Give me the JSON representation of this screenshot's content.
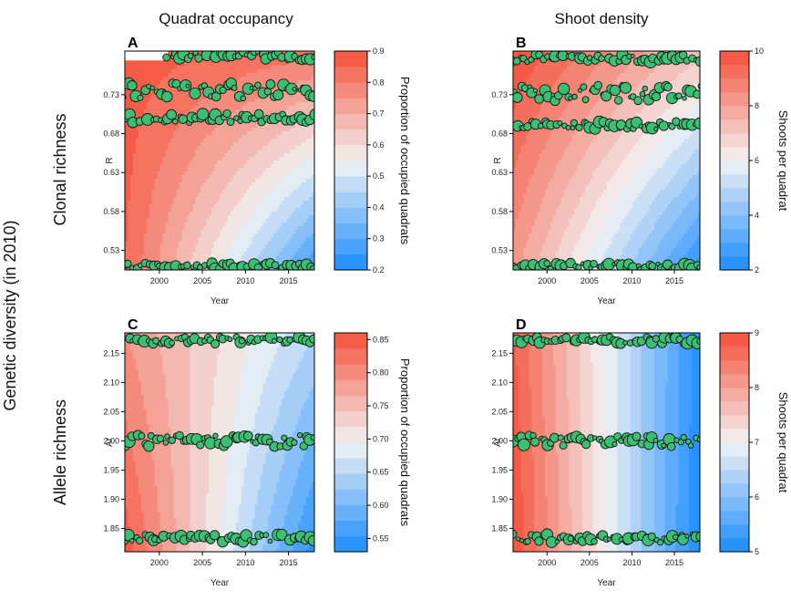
{
  "figure": {
    "column_titles": [
      "Quadrat occupancy",
      "Shoot density"
    ],
    "row_titles": [
      "Clonal richness",
      "Allele richness"
    ],
    "outer_label": "Genetic diversity (in 2010)",
    "colors": {
      "low": "#1a8cff",
      "mid": "#f2f2f2",
      "high": "#f5503a",
      "point_fill": "#3dbf73"
    }
  },
  "chart_data": [
    {
      "panel": "A",
      "type": "heatmap",
      "xlabel": "Year",
      "ylabel": "R",
      "xlim": [
        1996,
        2018
      ],
      "ylim": [
        0.505,
        0.786
      ],
      "x_ticks": [
        2000,
        2005,
        2010,
        2015
      ],
      "x_tick_labels": [
        "2000",
        "2005",
        "2010",
        "2015"
      ],
      "y_ticks": [
        0.53,
        0.58,
        0.63,
        0.68,
        0.73
      ],
      "y_tick_labels": [
        "0.53",
        "0.58",
        "0.63",
        "0.68",
        "0.73"
      ],
      "colorbar": {
        "label": "Proportion of occupied quadrats",
        "min": 0.2,
        "max": 0.9,
        "levels": 14,
        "ticks": [
          0.2,
          0.3,
          0.4,
          0.5,
          0.6,
          0.7,
          0.8,
          0.9
        ],
        "tick_labels": [
          "0.2",
          "0.3",
          "0.4",
          "0.5",
          "0.6",
          "0.7",
          "0.8",
          "0.9"
        ]
      },
      "surface": {
        "corners": {
          "x_min_y_min": 0.85,
          "x_max_y_min": 0.25,
          "x_min_y_max": 0.88,
          "x_max_y_max": 0.82
        }
      },
      "point_groups": [
        {
          "y": 0.78,
          "range": [
            0.774,
            0.786
          ],
          "start": 2001,
          "end": 2018
        },
        {
          "y": 0.735,
          "range": [
            0.725,
            0.745
          ],
          "start": 1996,
          "end": 2018
        },
        {
          "y": 0.7,
          "range": [
            0.694,
            0.706
          ],
          "start": 1996,
          "end": 2018
        },
        {
          "y": 0.51,
          "range": [
            0.506,
            0.514
          ],
          "start": 1996,
          "end": 2018
        }
      ]
    },
    {
      "panel": "B",
      "type": "heatmap",
      "xlabel": "Year",
      "ylabel": "R",
      "xlim": [
        1996,
        2018
      ],
      "ylim": [
        0.505,
        0.786
      ],
      "x_ticks": [
        2000,
        2005,
        2010,
        2015
      ],
      "x_tick_labels": [
        "2000",
        "2005",
        "2010",
        "2015"
      ],
      "y_ticks": [
        0.53,
        0.58,
        0.63,
        0.68,
        0.73
      ],
      "y_tick_labels": [
        "0.53",
        "0.58",
        "0.63",
        "0.68",
        "0.73"
      ],
      "colorbar": {
        "label": "Shoots per quadrat",
        "min": 2,
        "max": 10,
        "levels": 16,
        "ticks": [
          2,
          4,
          6,
          8,
          10
        ],
        "tick_labels": [
          "2",
          "4",
          "6",
          "8",
          "10"
        ]
      },
      "surface": {
        "corners": {
          "x_min_y_min": 8.2,
          "x_max_y_min": 2.2,
          "x_min_y_max": 10.0,
          "x_max_y_max": 7.2
        }
      },
      "point_groups": [
        {
          "y": 0.776,
          "range": [
            0.772,
            0.782
          ],
          "start": 1996,
          "end": 2018
        },
        {
          "y": 0.73,
          "range": [
            0.722,
            0.742
          ],
          "start": 1996,
          "end": 2018
        },
        {
          "y": 0.69,
          "range": [
            0.686,
            0.696
          ],
          "start": 1996,
          "end": 2018
        },
        {
          "y": 0.51,
          "range": [
            0.506,
            0.514
          ],
          "start": 1996,
          "end": 2018
        }
      ]
    },
    {
      "panel": "C",
      "type": "heatmap",
      "xlabel": "Year",
      "ylabel": "Ar",
      "xlim": [
        1996,
        2018
      ],
      "ylim": [
        1.81,
        2.185
      ],
      "x_ticks": [
        2000,
        2005,
        2010,
        2015
      ],
      "x_tick_labels": [
        "2000",
        "2005",
        "2010",
        "2015"
      ],
      "y_ticks": [
        1.85,
        1.9,
        1.95,
        2.0,
        2.05,
        2.1,
        2.15
      ],
      "y_tick_labels": [
        "1.85",
        "1.90",
        "1.95",
        "2.00",
        "2.05",
        "2.10",
        "2.15"
      ],
      "colorbar": {
        "label": "Proportion of occupied quadrats",
        "min": 0.53,
        "max": 0.86,
        "levels": 14,
        "ticks": [
          0.55,
          0.6,
          0.65,
          0.7,
          0.75,
          0.8,
          0.85
        ],
        "tick_labels": [
          "0.55",
          "0.60",
          "0.65",
          "0.70",
          "0.75",
          "0.80",
          "0.85"
        ]
      },
      "surface": {
        "corners": {
          "x_min_y_min": 0.85,
          "x_max_y_min": 0.54,
          "x_min_y_max": 0.79,
          "x_max_y_max": 0.65
        }
      },
      "point_groups": [
        {
          "y": 2.172,
          "range": [
            2.166,
            2.178
          ],
          "start": 1996,
          "end": 2018
        },
        {
          "y": 2.0,
          "range": [
            1.99,
            2.01
          ],
          "start": 1996,
          "end": 2018
        },
        {
          "y": 1.832,
          "range": [
            1.826,
            1.84
          ],
          "start": 1996,
          "end": 2018
        }
      ]
    },
    {
      "panel": "D",
      "type": "heatmap",
      "xlabel": "Year",
      "ylabel": "Ar",
      "xlim": [
        1996,
        2018
      ],
      "ylim": [
        1.81,
        2.185
      ],
      "x_ticks": [
        2000,
        2005,
        2010,
        2015
      ],
      "x_tick_labels": [
        "2000",
        "2005",
        "2010",
        "2015"
      ],
      "y_ticks": [
        1.85,
        1.9,
        1.95,
        2.0,
        2.05,
        2.1,
        2.15
      ],
      "y_tick_labels": [
        "1.85",
        "1.90",
        "1.95",
        "2.00",
        "2.05",
        "2.10",
        "2.15"
      ],
      "colorbar": {
        "label": "Shoots per quadrat",
        "min": 5,
        "max": 9,
        "levels": 16,
        "ticks": [
          5,
          6,
          7,
          8,
          9
        ],
        "tick_labels": [
          "5",
          "6",
          "7",
          "8",
          "9"
        ]
      },
      "surface": {
        "corners": {
          "x_min_y_min": 9.0,
          "x_max_y_min": 5.0,
          "x_min_y_max": 8.8,
          "x_max_y_max": 5.1
        }
      },
      "point_groups": [
        {
          "y": 2.172,
          "range": [
            2.166,
            2.178
          ],
          "start": 1996,
          "end": 2018
        },
        {
          "y": 2.0,
          "range": [
            1.99,
            2.01
          ],
          "start": 1996,
          "end": 2018
        },
        {
          "y": 1.832,
          "range": [
            1.826,
            1.84
          ],
          "start": 1996,
          "end": 2018
        }
      ]
    }
  ]
}
